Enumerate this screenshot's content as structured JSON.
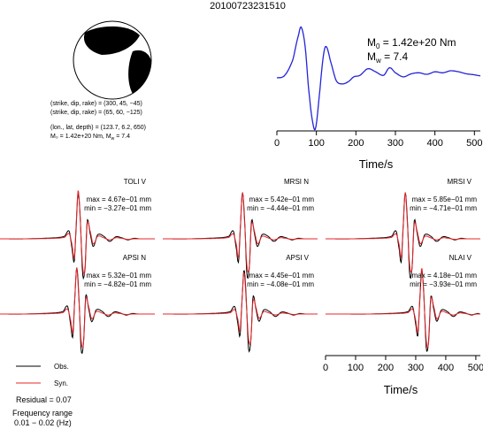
{
  "event_id": "20100723231510",
  "mechanism": {
    "plane1": "(strike, dip, rake) = (300, 45, −45)",
    "plane2": "(strike, dip, rake) = (65, 60, −125)",
    "location": "(lon., lat, depth) = (123.7, 6.2, 650)",
    "moment_line": "M₀ = 1.42e+20 Nm, M",
    "moment_line_mw": "w",
    "moment_line_tail": " = 7.4"
  },
  "stf": {
    "m0_label": "M",
    "m0_sub": "0",
    "m0_value": " = 1.42e+20 Nm",
    "mw_label": "M",
    "mw_sub": "w",
    "mw_value": " = 7.4",
    "xlabel": "Time/s"
  },
  "waveforms": {
    "xlabel": "Time/s",
    "panels": [
      {
        "station": "TOLI V",
        "max": "max = 4.67e−01 mm",
        "min": "min = −3.27e−01 mm"
      },
      {
        "station": "MRSI N",
        "max": "max = 5.42e−01 mm",
        "min": "min = −4.44e−01 mm"
      },
      {
        "station": "MRSI V",
        "max": "max = 5.85e−01 mm",
        "min": "min = −4.71e−01 mm"
      },
      {
        "station": "APSI N",
        "max": "max = 5.32e−01 mm",
        "min": "min = −4.82e−01 mm"
      },
      {
        "station": "APSI V",
        "max": "max = 4.45e−01 mm",
        "min": "min = −4.08e−01 mm"
      },
      {
        "station": "NLAI V",
        "max": "max = 4.18e−01 mm",
        "min": "min = −3.93e−01 mm"
      }
    ]
  },
  "legend": {
    "obs": "Obs.",
    "syn": "Syn.",
    "residual": "Residual = 0.07",
    "freq_title": "Frequency range",
    "freq_value": "0.01 − 0.02 (Hz)"
  },
  "colors": {
    "observed": "#000000",
    "synthetic": "#e8262b",
    "stf_line": "#2424d8",
    "beachball_fill": "#000000"
  },
  "chart_data": [
    {
      "type": "line",
      "title": "",
      "xlabel": "Time/s",
      "ylabel": "",
      "xlim": [
        0,
        515
      ],
      "xticks": [
        0,
        100,
        200,
        300,
        400,
        500
      ],
      "series": [
        {
          "x": [
            0,
            20,
            40,
            55,
            62,
            72,
            80,
            90,
            98,
            108,
            118,
            125,
            135,
            150,
            165,
            180,
            195,
            210,
            230,
            250,
            270,
            285,
            300,
            320,
            340,
            360,
            380,
            400,
            420,
            440,
            460,
            480,
            500,
            515
          ],
          "values": [
            0.0,
            0.05,
            0.35,
            0.85,
            1.0,
            0.6,
            -0.2,
            -0.85,
            -1.0,
            -0.3,
            0.45,
            0.62,
            0.35,
            -0.05,
            -0.12,
            -0.08,
            0.02,
            0.05,
            0.18,
            0.12,
            0.05,
            0.2,
            0.1,
            0.02,
            0.08,
            0.1,
            0.07,
            0.12,
            0.1,
            0.14,
            0.12,
            0.08,
            0.06,
            0.04
          ]
        }
      ]
    },
    {
      "type": "line",
      "title": "",
      "xlabel": "Time/s",
      "ylabel": "",
      "xlim": [
        0,
        515
      ],
      "xticks": [
        0,
        100,
        200,
        300,
        400,
        500
      ],
      "series": [
        {
          "name": "Obs.",
          "x": [
            0,
            100,
            200,
            230,
            245,
            255,
            262,
            268,
            275,
            282,
            290,
            298,
            305,
            315,
            325,
            340,
            360,
            380,
            400,
            420,
            440,
            460,
            480,
            500,
            515
          ],
          "values": [
            0,
            0.0,
            0.02,
            0.05,
            0.15,
            -0.2,
            -0.45,
            0.2,
            0.9,
            0.4,
            -0.7,
            -0.55,
            0.35,
            0.1,
            -0.15,
            0.08,
            0.05,
            -0.05,
            0.04,
            0.02,
            -0.02,
            0.01,
            0.0,
            0.0,
            0.0
          ]
        },
        {
          "name": "Syn.",
          "x": [
            0,
            100,
            200,
            230,
            245,
            255,
            262,
            268,
            275,
            282,
            290,
            298,
            305,
            315,
            325,
            340,
            360,
            380,
            400,
            420,
            440,
            460,
            480,
            500,
            515
          ],
          "values": [
            0,
            0.0,
            0.01,
            0.03,
            0.1,
            -0.12,
            -0.38,
            0.25,
            0.95,
            0.35,
            -0.55,
            -0.6,
            0.3,
            0.15,
            -0.1,
            0.05,
            0.02,
            -0.02,
            0.02,
            0.01,
            -0.01,
            0.0,
            0.0,
            0.0,
            0.0
          ]
        }
      ]
    }
  ]
}
